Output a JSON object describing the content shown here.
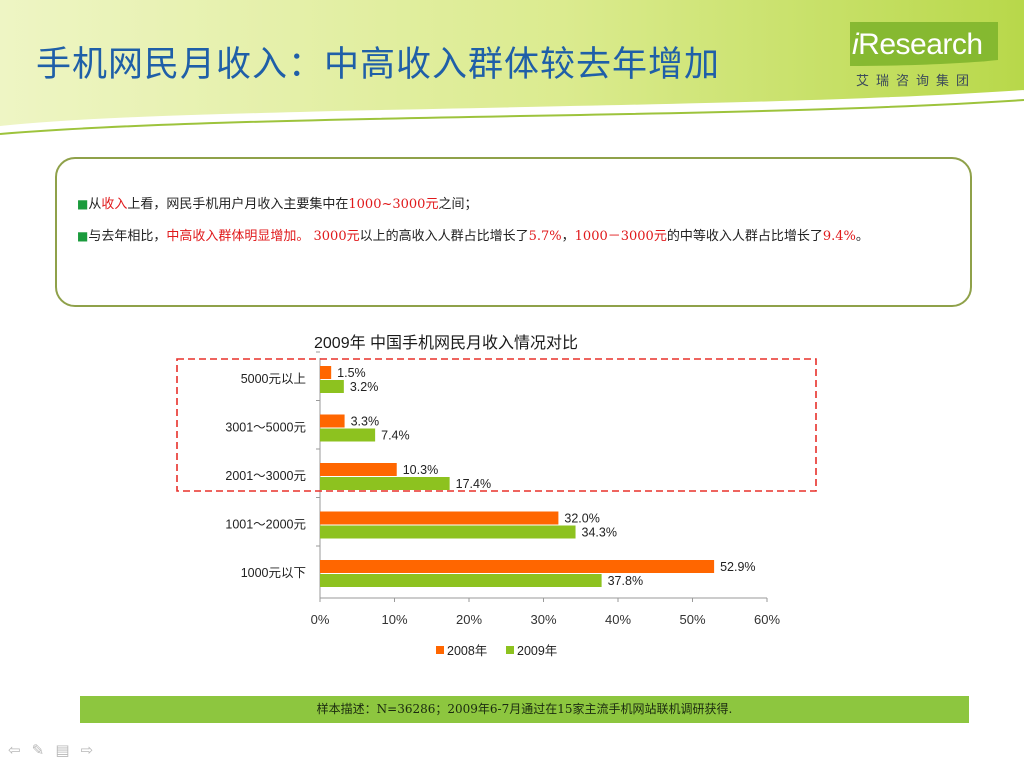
{
  "title": "手机网民月收入：中高收入群体较去年增加",
  "logo": {
    "brand_i": "i",
    "brand_rest": "Research",
    "subtitle": "艾瑞咨询集团"
  },
  "summary": {
    "b1_a": "从",
    "b1_b": "收入",
    "b1_c": "上看，网民手机用户月收入主要集中在",
    "b1_d": "1000~3000元",
    "b1_e": "之间；",
    "b2_a": "与去年相比，",
    "b2_b": "中高收入群体明显增加。",
    "b2_c": " 3000元",
    "b2_d": "以上的高收入人群占比增长了",
    "b2_e": "5.7%",
    "b2_f": "，",
    "b2_g": "1000－3000元",
    "b2_h": "的中等收入人群占比增长了",
    "b2_i": "9.4%",
    "b2_j": "。"
  },
  "colors": {
    "s2008": "#ff6600",
    "s2009": "#8dc21f",
    "title_blue": "#1f5fa8",
    "frame_red": "#e8302a",
    "footer_green": "#8dc63f"
  },
  "icons": [
    "prev-arrow-icon",
    "pen-icon",
    "menu-icon",
    "next-arrow-icon"
  ],
  "footer": "样本描述：N=36286；2009年6-7月通过在15家主流手机网站联机调研获得.",
  "chart_data": {
    "type": "bar",
    "orientation": "horizontal",
    "title": "2009年 中国手机网民月收入情况对比",
    "categories": [
      "5000元以上",
      "3001～5000元",
      "2001～3000元",
      "1001～2000元",
      "1000元以下"
    ],
    "series": [
      {
        "name": "2008年",
        "values": [
          1.5,
          3.3,
          10.3,
          32.0,
          52.9
        ],
        "labels": [
          "1.5%",
          "3.3%",
          "10.3%",
          "32.0%",
          "52.9%"
        ],
        "color": "#ff6600"
      },
      {
        "name": "2009年",
        "values": [
          3.2,
          7.4,
          17.4,
          34.3,
          37.8
        ],
        "labels": [
          "3.2%",
          "7.4%",
          "17.4%",
          "34.3%",
          "37.8%"
        ],
        "color": "#8dc21f"
      }
    ],
    "xlim": [
      0,
      60
    ],
    "xticks": [
      "0%",
      "10%",
      "20%",
      "30%",
      "40%",
      "50%",
      "60%"
    ],
    "legend_position": "bottom",
    "highlighted_categories": [
      "5000元以上",
      "3001～5000元"
    ]
  }
}
